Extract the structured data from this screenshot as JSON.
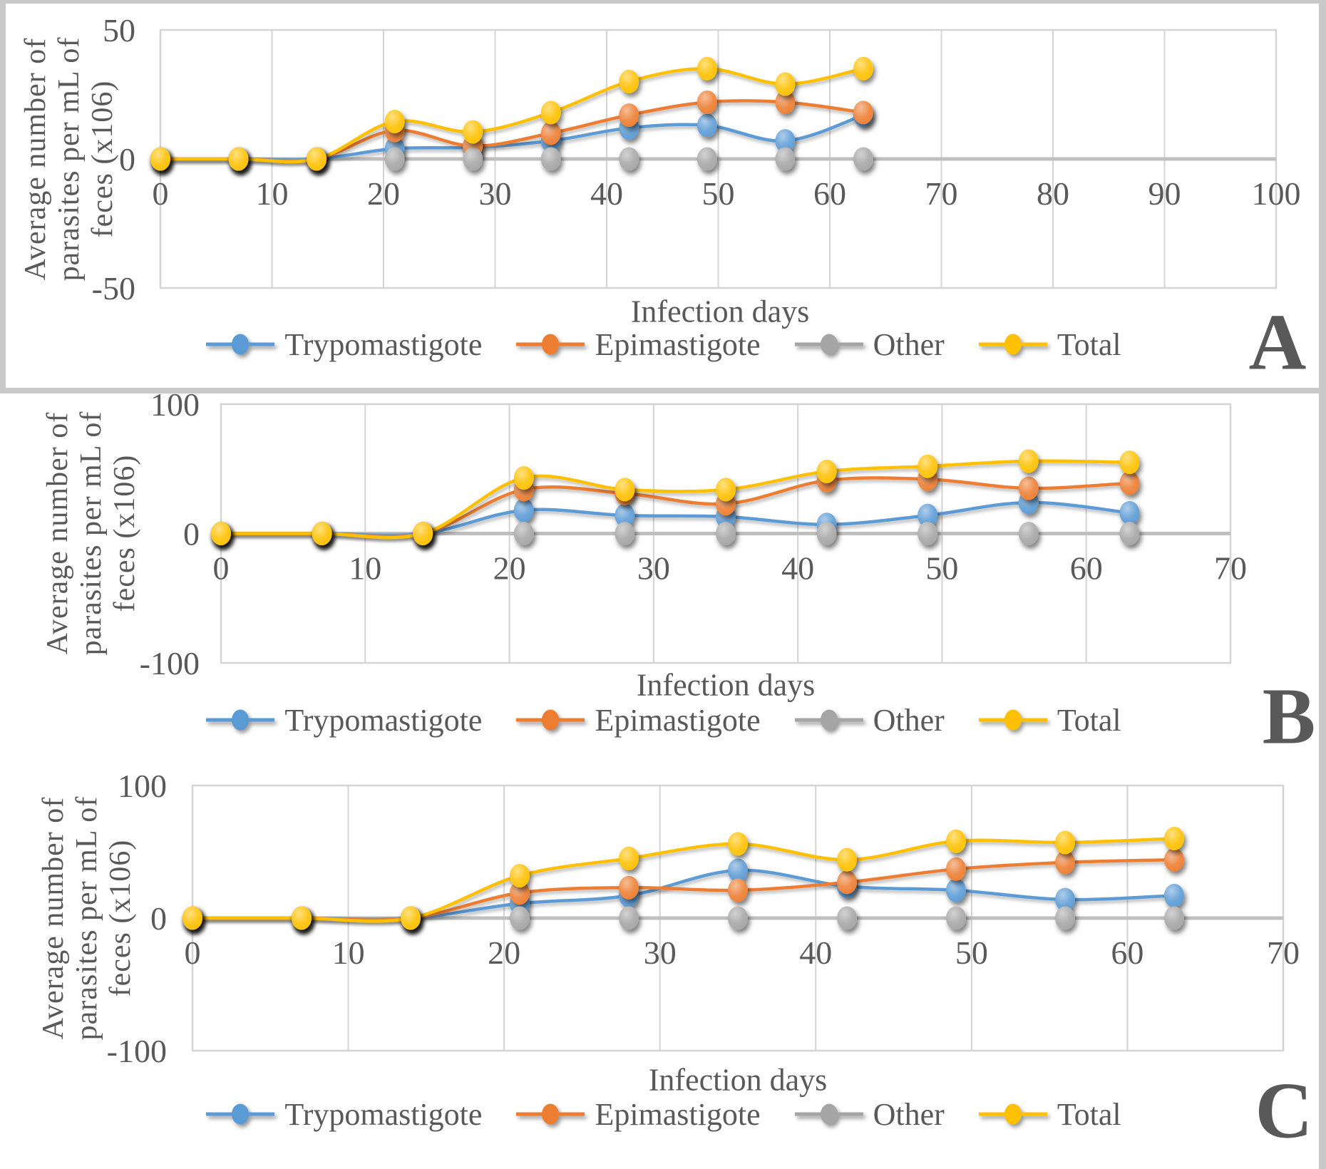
{
  "figure": {
    "background": "#FFFFFF",
    "frame_color": "#C9C9C9",
    "text_color": "#595959",
    "gridline_color": "#D4D4D4",
    "axis_line_color": "#BFBFBF",
    "panels": [
      {
        "letter": "A",
        "x_axis_title": "Infection days"
      },
      {
        "letter": "B",
        "x_axis_title": "Infection days"
      },
      {
        "letter": "C",
        "x_axis_title": "Infection days"
      }
    ]
  },
  "chart_data": [
    {
      "type": "line",
      "panel": "A",
      "title": "",
      "xlabel": "Infection days",
      "ylabel": "Average number of parasites per mL of feces (x106)",
      "ylabel_lines": [
        "Average number of",
        "parasites per mL of",
        "feces (x106)"
      ],
      "x": [
        0,
        7,
        14,
        21,
        28,
        35,
        42,
        49,
        56,
        63
      ],
      "xlim": [
        0,
        100
      ],
      "ylim": [
        -50,
        50
      ],
      "xticks": [
        0,
        10,
        20,
        30,
        40,
        50,
        60,
        70,
        80,
        90,
        100
      ],
      "yticks": [
        50,
        0,
        -50
      ],
      "grid": true,
      "legend_position": "bottom",
      "series": [
        {
          "name": "Trypomastigote",
          "color": "#5B9BD5",
          "values": [
            0,
            0,
            0,
            4,
            4.5,
            7,
            12,
            13,
            7,
            17
          ]
        },
        {
          "name": "Epimastigote",
          "color": "#ED7D31",
          "values": [
            0,
            0,
            0,
            11,
            5,
            10,
            17,
            22,
            22,
            18
          ]
        },
        {
          "name": "Other",
          "color": "#A5A5A5",
          "values": [
            0,
            0,
            0,
            0,
            0,
            0,
            0,
            0,
            0,
            0
          ]
        },
        {
          "name": "Total",
          "color": "#FFC000",
          "values": [
            0,
            0,
            0,
            14.5,
            10.5,
            18,
            30,
            35,
            29,
            35
          ]
        }
      ]
    },
    {
      "type": "line",
      "panel": "B",
      "title": "",
      "xlabel": "Infection days",
      "ylabel": "Average number of parasites per mL of feces (x106)",
      "ylabel_lines": [
        "Average number of",
        "parasites per mL of",
        "feces (x106)"
      ],
      "x": [
        0,
        7,
        14,
        21,
        28,
        35,
        42,
        49,
        56,
        63
      ],
      "xlim": [
        0,
        70
      ],
      "ylim": [
        -100,
        100
      ],
      "xticks": [
        0,
        10,
        20,
        30,
        40,
        50,
        60,
        70
      ],
      "yticks": [
        100,
        0,
        -100
      ],
      "grid": true,
      "legend_position": "bottom",
      "series": [
        {
          "name": "Trypomastigote",
          "color": "#5B9BD5",
          "values": [
            0,
            0,
            0,
            18,
            14,
            13,
            7,
            14,
            24,
            16
          ]
        },
        {
          "name": "Epimastigote",
          "color": "#ED7D31",
          "values": [
            0,
            0,
            0,
            34,
            31,
            23,
            41,
            42,
            35,
            39
          ]
        },
        {
          "name": "Other",
          "color": "#A5A5A5",
          "values": [
            0,
            0,
            0,
            0,
            0,
            0,
            0,
            0,
            0,
            0
          ]
        },
        {
          "name": "Total",
          "color": "#FFC000",
          "values": [
            0,
            0,
            0,
            43,
            34,
            34,
            48,
            52,
            56,
            55
          ]
        }
      ]
    },
    {
      "type": "line",
      "panel": "C",
      "title": "",
      "xlabel": "Infection days",
      "ylabel": "Average number of parasites per mL of feces (x106)",
      "ylabel_lines": [
        "Average number of",
        "parasites per mL of",
        "feces (x106)"
      ],
      "x": [
        0,
        7,
        14,
        21,
        28,
        35,
        42,
        49,
        56,
        63
      ],
      "xlim": [
        0,
        70
      ],
      "ylim": [
        -100,
        100
      ],
      "xticks": [
        0,
        10,
        20,
        30,
        40,
        50,
        60,
        70
      ],
      "yticks": [
        100,
        0,
        -100
      ],
      "grid": true,
      "legend_position": "bottom",
      "series": [
        {
          "name": "Trypomastigote",
          "color": "#5B9BD5",
          "values": [
            0,
            0,
            0,
            11,
            17,
            36,
            24,
            21,
            14,
            17
          ]
        },
        {
          "name": "Epimastigote",
          "color": "#ED7D31",
          "values": [
            0,
            0,
            0,
            19,
            23,
            21,
            27,
            37,
            42,
            44
          ]
        },
        {
          "name": "Other",
          "color": "#A5A5A5",
          "values": [
            0,
            0,
            0,
            0,
            0,
            0,
            0,
            0,
            0,
            0
          ]
        },
        {
          "name": "Total",
          "color": "#FFC000",
          "values": [
            0,
            0,
            0,
            32,
            45,
            56,
            44,
            58,
            57,
            60
          ]
        }
      ]
    }
  ]
}
